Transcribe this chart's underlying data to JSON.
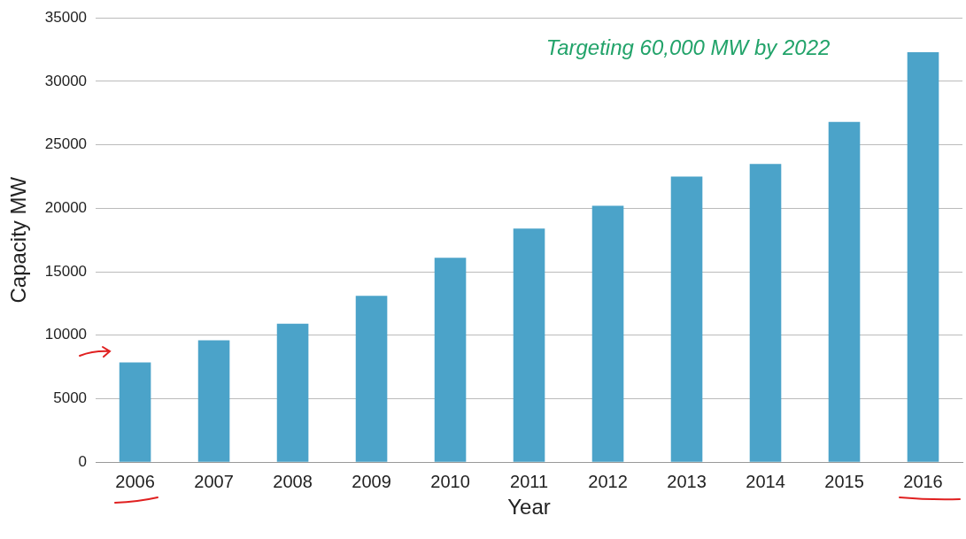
{
  "chart_data": {
    "type": "bar",
    "xlabel": "Year",
    "ylabel": "Capacity MW",
    "categories": [
      "2006",
      "2007",
      "2008",
      "2009",
      "2010",
      "2011",
      "2012",
      "2013",
      "2014",
      "2015",
      "2016"
    ],
    "values": [
      7850,
      9600,
      10900,
      13100,
      16100,
      18400,
      20200,
      22500,
      23500,
      26800,
      32300
    ],
    "color": "#4ba3c9",
    "ylim": [
      0,
      35000
    ],
    "yticks": [
      0,
      5000,
      10000,
      15000,
      20000,
      25000,
      30000,
      35000
    ],
    "grid": "y",
    "legend": false,
    "annotations": [
      "Targeting 60,000 MW by 2022"
    ]
  }
}
